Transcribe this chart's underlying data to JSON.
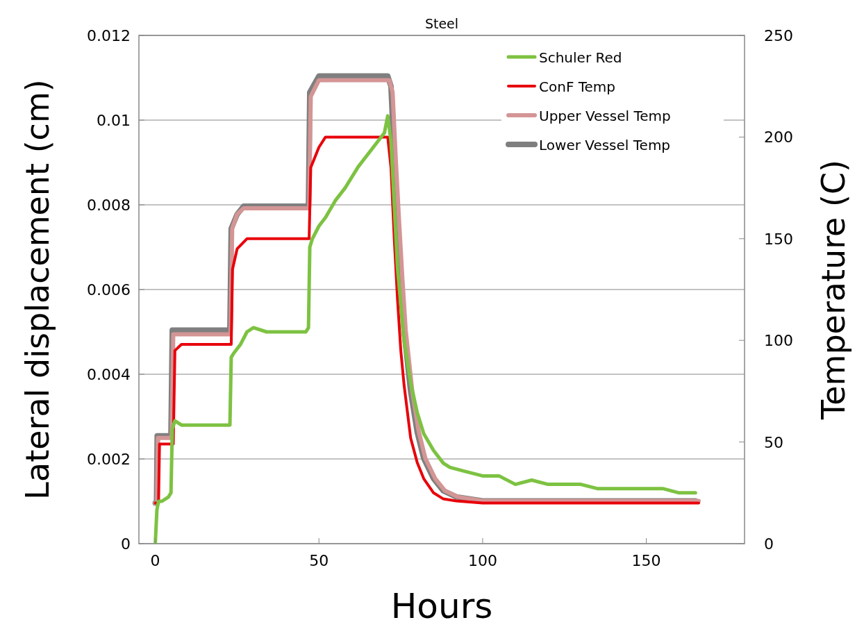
{
  "chart_data": {
    "type": "line",
    "title": "Steel",
    "xlabel": "Hours",
    "ylabel": "Lateral displacement (cm)",
    "y2label": "Temperature (C)",
    "xlim": [
      -5,
      180
    ],
    "xticks": [
      0,
      50,
      100,
      150
    ],
    "ylim": [
      0,
      0.012
    ],
    "yticks": [
      0,
      0.002,
      0.004,
      0.006,
      0.008,
      0.01,
      0.012
    ],
    "y2lim": [
      0,
      250
    ],
    "y2ticks": [
      0,
      50,
      100,
      150,
      200,
      250
    ],
    "grid": "y",
    "legend": "top right",
    "series": [
      {
        "name": "Schuler Red",
        "color": "#7dc242",
        "x": [
          0,
          0.5,
          1,
          2,
          4,
          4.8,
          5.2,
          6,
          8,
          12,
          16,
          20,
          22.8,
          23.2,
          24,
          26,
          28,
          30,
          34,
          38,
          42,
          46,
          46.8,
          47.2,
          48,
          50,
          52,
          55,
          58,
          62,
          66,
          70,
          71,
          72,
          73,
          74,
          76,
          78,
          80,
          82,
          85,
          88,
          90,
          95,
          100,
          105,
          110,
          115,
          120,
          125,
          130,
          135,
          140,
          145,
          150,
          155,
          160,
          165
        ],
        "values": [
          0,
          0.0008,
          0.001,
          0.001,
          0.0011,
          0.0012,
          0.0027,
          0.0029,
          0.0028,
          0.0028,
          0.0028,
          0.0028,
          0.0028,
          0.0044,
          0.0045,
          0.0047,
          0.005,
          0.0051,
          0.005,
          0.005,
          0.005,
          0.005,
          0.0051,
          0.007,
          0.0072,
          0.0075,
          0.0077,
          0.0081,
          0.0084,
          0.0089,
          0.0093,
          0.0097,
          0.0101,
          0.0095,
          0.008,
          0.0065,
          0.0048,
          0.0038,
          0.0031,
          0.0026,
          0.0022,
          0.0019,
          0.0018,
          0.0017,
          0.0016,
          0.0016,
          0.0014,
          0.0015,
          0.0014,
          0.0014,
          0.0014,
          0.0013,
          0.0013,
          0.0013,
          0.0013,
          0.0013,
          0.0012,
          0.0012
        ]
      },
      {
        "name": "ConF Temp",
        "color": "#e8000b",
        "axis": "y2",
        "x": [
          0,
          1,
          1.3,
          5.5,
          6,
          8,
          23.2,
          23.6,
          25,
          28,
          47,
          47.5,
          50,
          52,
          71,
          72,
          73,
          74,
          75,
          76,
          78,
          80,
          82,
          85,
          88,
          92,
          100,
          130,
          166
        ],
        "values": [
          20,
          20,
          49,
          49,
          95,
          98,
          98,
          135,
          145,
          150,
          150,
          185,
          195,
          200,
          200,
          185,
          150,
          120,
          95,
          78,
          52,
          40,
          32,
          25,
          22,
          21,
          20,
          20,
          20
        ]
      },
      {
        "name": "Upper Vessel Temp",
        "color": "#d49595",
        "axis": "y2",
        "x": [
          0,
          0.5,
          0.8,
          5,
          5.5,
          23,
          23.5,
          25,
          27,
          47,
          47.5,
          50,
          71.5,
          72.5,
          73.5,
          74.5,
          75.5,
          76.5,
          78.5,
          80.5,
          82.5,
          85.5,
          88.5,
          92.5,
          100,
          130,
          166
        ],
        "values": [
          20,
          20,
          52,
          52,
          103,
          103,
          155,
          162,
          165,
          165,
          220,
          228,
          228,
          222,
          188,
          158,
          130,
          105,
          75,
          55,
          42,
          32,
          26,
          23,
          21,
          21,
          21
        ]
      },
      {
        "name": "Lower Vessel Temp",
        "color": "#7f7f7f",
        "axis": "y2",
        "x": [
          0,
          0.4,
          0.6,
          4.8,
          5.2,
          22.8,
          23.2,
          25,
          27,
          46.8,
          47.2,
          50,
          71,
          72,
          73,
          74,
          75,
          76,
          78,
          80,
          82,
          85,
          88,
          92,
          100,
          130,
          165
        ],
        "values": [
          20,
          20,
          53,
          53,
          105,
          105,
          155,
          162,
          166,
          166,
          222,
          230,
          230,
          225,
          190,
          160,
          130,
          105,
          75,
          55,
          42,
          32,
          26,
          23,
          21,
          21,
          21
        ]
      }
    ]
  }
}
